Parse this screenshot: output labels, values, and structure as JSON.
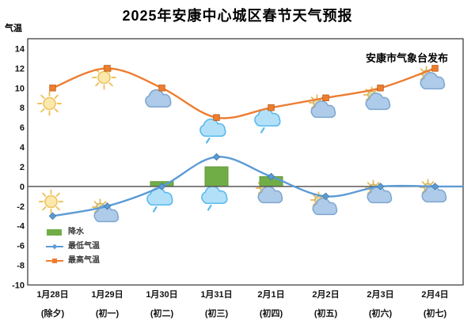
{
  "page": {
    "title": "2025年安康中心城区春节天气预报",
    "publisher": "安康市气象台发布",
    "y_axis_label": "气温"
  },
  "chart_data": {
    "type": "combo-bar-line",
    "title": "2025年安康中心城区春节天气预报",
    "ylabel": "气温",
    "categories": [
      "1月28日",
      "1月29日",
      "1月30日",
      "1月31日",
      "2月1日",
      "2月2日",
      "2月3日",
      "2月4日"
    ],
    "category_sublabels": [
      "(除夕)",
      "(初一)",
      "(初二)",
      "(初三)",
      "(初四)",
      "(初五)",
      "(初六)",
      "(初七)"
    ],
    "ylim": [
      -10,
      15
    ],
    "yticks": [
      14,
      12,
      10,
      8,
      6,
      4,
      2,
      0,
      -2,
      -4,
      -6,
      -8,
      -10
    ],
    "grid": false,
    "legend_position": "inside-bottom-left",
    "series": [
      {
        "name": "降水",
        "type": "bar",
        "marker": "rect",
        "color": "#70AD47",
        "values": [
          0,
          0,
          0.5,
          2,
          1,
          0,
          0,
          0
        ]
      },
      {
        "name": "最低气温",
        "type": "line",
        "marker": "diamond",
        "color": "#5B9BD5",
        "values": [
          -3,
          -2,
          0,
          3,
          1,
          -1,
          0,
          0
        ]
      },
      {
        "name": "最高气温",
        "type": "line",
        "marker": "square",
        "color": "#ED7D31",
        "values": [
          10,
          12,
          10,
          7,
          8,
          9,
          10,
          12
        ]
      }
    ],
    "weather_icons": {
      "day": [
        "sunny",
        "sunny",
        "cloudy",
        "rain",
        "rain",
        "partly",
        "partly",
        "partly"
      ],
      "night": [
        "sunny",
        "partly",
        "rain",
        "rain",
        "partly",
        "partly",
        "partly",
        "partly"
      ]
    }
  }
}
